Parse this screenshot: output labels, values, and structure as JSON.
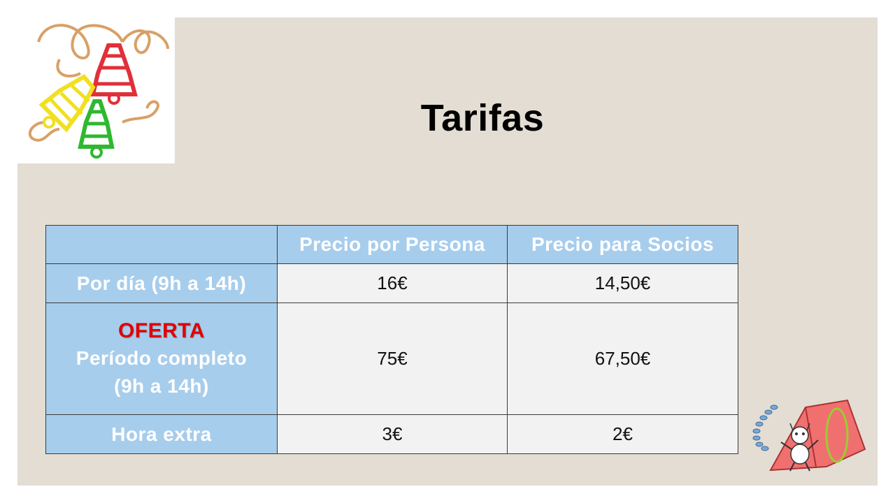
{
  "title": "Tarifas",
  "table": {
    "headers": [
      "",
      "Precio por Persona",
      "Precio para Socios"
    ],
    "rows": [
      {
        "label": "Por día (9h a 14h)",
        "price_person": "16€",
        "price_member": "14,50€"
      },
      {
        "offer": "OFERTA",
        "label_line1": "Período completo",
        "label_line2": "(9h a 14h)",
        "price_person": "75€",
        "price_member": "67,50€"
      },
      {
        "label": "Hora extra",
        "price_person": "3€",
        "price_member": "2€"
      }
    ]
  },
  "colors": {
    "slide_background": "#e3ddd3",
    "header_blue": "#a7cdec",
    "cell_grey": "#f2f2f2",
    "offer_red": "#e00000"
  },
  "images": {
    "top_left": "christmas-bells-illustration",
    "bottom_right": "mascot-with-open-book-illustration"
  }
}
